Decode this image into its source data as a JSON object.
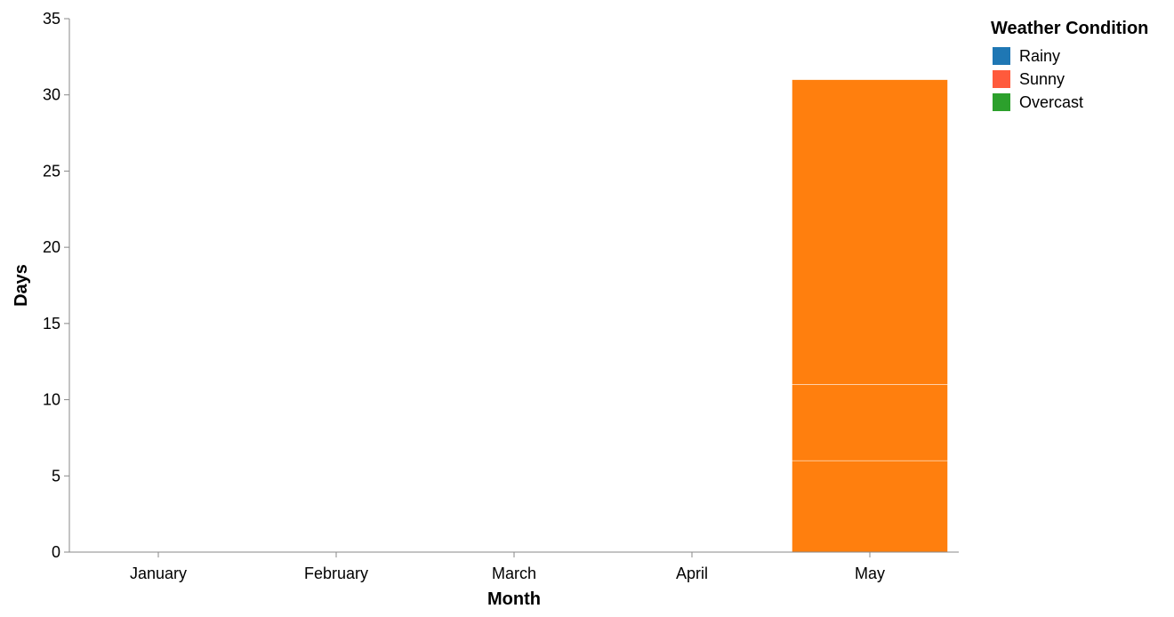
{
  "chart_data": {
    "type": "bar",
    "stacked": true,
    "title": "",
    "xlabel": "Month",
    "ylabel": "Days",
    "categories": [
      "January",
      "February",
      "March",
      "April",
      "May"
    ],
    "ylim": [
      0,
      35
    ],
    "yticks": [
      0,
      5,
      10,
      15,
      20,
      25,
      30,
      35
    ],
    "grid": false,
    "legend": {
      "title": "Weather Condition",
      "placement": "top-right",
      "entries": [
        {
          "label": "Rainy",
          "color": "#1f77b4"
        },
        {
          "label": "Sunny",
          "color": "#ff5a3c"
        },
        {
          "label": "Overcast",
          "color": "#2ca02c"
        }
      ]
    },
    "bar_color": "#ff7f0e",
    "segments": [
      {
        "category": "May",
        "values": [
          6,
          5,
          20
        ]
      }
    ]
  }
}
